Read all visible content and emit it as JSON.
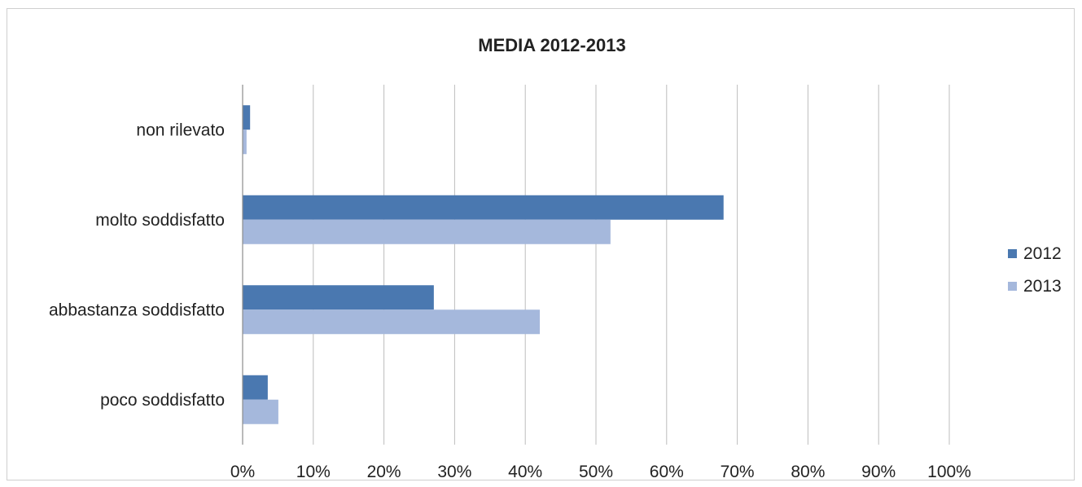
{
  "chart_data": {
    "type": "bar",
    "orientation": "horizontal",
    "title": "MEDIA 2012-2013",
    "xlabel": "",
    "ylabel": "",
    "categories": [
      "poco soddisfatto",
      "abbastanza soddisfatto",
      "molto soddisfatto",
      "non rilevato"
    ],
    "series": [
      {
        "name": "2012",
        "color": "#4a78b0",
        "values": [
          3.5,
          27,
          68,
          1
        ]
      },
      {
        "name": "2013",
        "color": "#a5b8dc",
        "values": [
          5,
          42,
          52,
          0.5
        ]
      }
    ],
    "xlim": [
      0,
      100
    ],
    "x_ticks": [
      "0%",
      "10%",
      "20%",
      "30%",
      "40%",
      "50%",
      "60%",
      "70%",
      "80%",
      "90%",
      "100%"
    ],
    "value_unit": "%",
    "grid": true,
    "legend_position": "right"
  }
}
